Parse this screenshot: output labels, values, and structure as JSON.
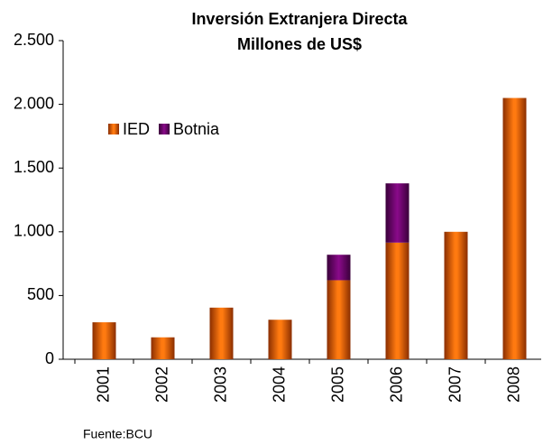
{
  "chart_data": {
    "type": "stacked_bar",
    "title": [
      "Inversión Extranjera Directa",
      "Millones de US$"
    ],
    "categories": [
      "2001",
      "2002",
      "2003",
      "2004",
      "2005",
      "2006",
      "2007",
      "2008"
    ],
    "series": [
      {
        "name": "IED",
        "color": "#ff6600",
        "values": [
          290,
          172,
          405,
          310,
          620,
          915,
          1000,
          2050
        ]
      },
      {
        "name": "Botnia",
        "color": "#800080",
        "values": [
          0,
          0,
          0,
          0,
          200,
          465,
          0,
          0
        ]
      }
    ],
    "ylim": [
      0,
      2500
    ],
    "yticks": [
      0,
      500,
      {
        "value": 1000,
        "label": "1.000"
      },
      {
        "value": 1500,
        "label": "1.500"
      },
      {
        "value": 2000,
        "label": "2.000"
      },
      {
        "value": 2500,
        "label": "2.500"
      }
    ],
    "grid": false,
    "legend": "upper left",
    "source": "Fuente:BCU"
  }
}
